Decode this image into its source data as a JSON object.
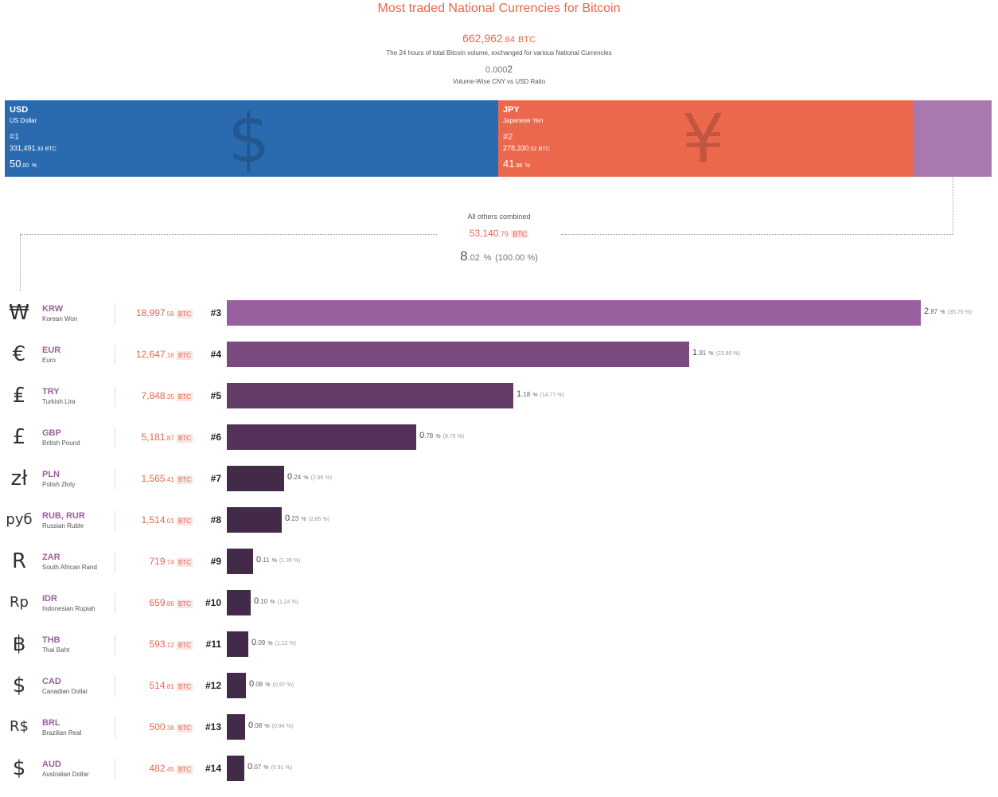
{
  "header": {
    "title": "Most traded National Currencies for Bitcoin",
    "total_int": "662,962",
    "total_dec": ".64",
    "total_unit": "BTC",
    "total_desc": "The 24 hours of total Bitcoin volume, exchanged for various National Currencies",
    "ratio_pre": "0.000",
    "ratio_last": "2",
    "ratio_label": "Volume-Wise CNY vs USD Ratio"
  },
  "top_blocks": [
    {
      "code": "USD",
      "name": "US Dollar",
      "rank": "#1",
      "vol_int": "331,491",
      "vol_dec": ".33",
      "unit": "BTC",
      "pct_int": "50",
      "pct_dec": ".00",
      "pct_unit": "%",
      "glyph": "$",
      "share": 50.0,
      "color": "#2a6bb0"
    },
    {
      "code": "JPY",
      "name": "Japanese Yen",
      "rank": "#2",
      "vol_int": "278,330",
      "vol_dec": ".52",
      "unit": "BTC",
      "pct_int": "41",
      "pct_dec": ".98",
      "pct_unit": "%",
      "glyph": "¥",
      "share": 41.98,
      "color": "#ec684d"
    }
  ],
  "others_block": {
    "share": 8.02,
    "color": "#a978af"
  },
  "others": {
    "label": "All others combined",
    "vol_int": "53,140",
    "vol_dec": ".79",
    "unit": "BTC",
    "pct_int": "8",
    "pct_dec": ".02",
    "pct_unit": "%",
    "total_pct": "(100.00 %)"
  },
  "chart_data": {
    "type": "bar",
    "categories": [
      "KRW",
      "EUR",
      "TRY",
      "GBP",
      "PLN",
      "RUB, RUR",
      "ZAR",
      "IDR",
      "THB",
      "CAD",
      "BRL",
      "AUD"
    ],
    "values": [
      18997.59,
      12647.16,
      7848.35,
      5181.87,
      1565.41,
      1514.01,
      719.74,
      659.86,
      593.12,
      514.81,
      500.38,
      482.45
    ],
    "unit": "BTC",
    "rows": [
      {
        "symbol": "₩",
        "code": "KRW",
        "name": "Korean Won",
        "vol_int": "18,997",
        "vol_dec": ".59",
        "unit": "BTC",
        "rank": "#3",
        "value": 18997.59,
        "pct_int": "2",
        "pct_dec": ".87",
        "pct_unit": "%",
        "rel": "(35.75 %)",
        "color": "#9a5f9f"
      },
      {
        "symbol": "€",
        "code": "EUR",
        "name": "Euro",
        "vol_int": "12,647",
        "vol_dec": ".16",
        "unit": "BTC",
        "rank": "#4",
        "value": 12647.16,
        "pct_int": "1",
        "pct_dec": ".91",
        "pct_unit": "%",
        "rel": "(23.80 %)",
        "color": "#7b4a7f"
      },
      {
        "symbol": "₤",
        "code": "TRY",
        "name": "Turkish Lira",
        "vol_int": "7,848",
        "vol_dec": ".35",
        "unit": "BTC",
        "rank": "#5",
        "value": 7848.35,
        "pct_int": "1",
        "pct_dec": ".18",
        "pct_unit": "%",
        "rel": "(14.77 %)",
        "color": "#623c66"
      },
      {
        "symbol": "£",
        "code": "GBP",
        "name": "British Pound",
        "vol_int": "5,181",
        "vol_dec": ".87",
        "unit": "BTC",
        "rank": "#6",
        "value": 5181.87,
        "pct_int": "0",
        "pct_dec": ".78",
        "pct_unit": "%",
        "rel": "(9.75 %)",
        "color": "#54325a"
      },
      {
        "symbol": "zł",
        "code": "PLN",
        "name": "Polish Złoty",
        "vol_int": "1,565",
        "vol_dec": ".41",
        "unit": "BTC",
        "rank": "#7",
        "value": 1565.41,
        "pct_int": "0",
        "pct_dec": ".24",
        "pct_unit": "%",
        "rel": "(2.95 %)",
        "color": "#432a48"
      },
      {
        "symbol": "руб",
        "code": "RUB, RUR",
        "name": "Russian Ruble",
        "vol_int": "1,514",
        "vol_dec": ".01",
        "unit": "BTC",
        "rank": "#8",
        "value": 1514.01,
        "pct_int": "0",
        "pct_dec": ".23",
        "pct_unit": "%",
        "rel": "(2.85 %)",
        "color": "#432a48"
      },
      {
        "symbol": "R",
        "code": "ZAR",
        "name": "South African Rand",
        "vol_int": "719",
        "vol_dec": ".74",
        "unit": "BTC",
        "rank": "#9",
        "value": 719.74,
        "pct_int": "0",
        "pct_dec": ".11",
        "pct_unit": "%",
        "rel": "(1.35 %)",
        "color": "#432a48"
      },
      {
        "symbol": "Rp",
        "code": "IDR",
        "name": "Indonesian Rupiah",
        "vol_int": "659",
        "vol_dec": ".86",
        "unit": "BTC",
        "rank": "#10",
        "value": 659.86,
        "pct_int": "0",
        "pct_dec": ".10",
        "pct_unit": "%",
        "rel": "(1.24 %)",
        "color": "#432a48"
      },
      {
        "symbol": "฿",
        "code": "THB",
        "name": "Thai Baht",
        "vol_int": "593",
        "vol_dec": ".12",
        "unit": "BTC",
        "rank": "#11",
        "value": 593.12,
        "pct_int": "0",
        "pct_dec": ".09",
        "pct_unit": "%",
        "rel": "(1.12 %)",
        "color": "#432a48"
      },
      {
        "symbol": "$",
        "code": "CAD",
        "name": "Canadian Dollar",
        "vol_int": "514",
        "vol_dec": ".81",
        "unit": "BTC",
        "rank": "#12",
        "value": 514.81,
        "pct_int": "0",
        "pct_dec": ".08",
        "pct_unit": "%",
        "rel": "(0.97 %)",
        "color": "#432a48"
      },
      {
        "symbol": "R$",
        "code": "BRL",
        "name": "Brazilian Real",
        "vol_int": "500",
        "vol_dec": ".38",
        "unit": "BTC",
        "rank": "#13",
        "value": 500.38,
        "pct_int": "0",
        "pct_dec": ".08",
        "pct_unit": "%",
        "rel": "(0.94 %)",
        "color": "#432a48"
      },
      {
        "symbol": "$",
        "code": "AUD",
        "name": "Australian Dollar",
        "vol_int": "482",
        "vol_dec": ".45",
        "unit": "BTC",
        "rank": "#14",
        "value": 482.45,
        "pct_int": "0",
        "pct_dec": ".07",
        "pct_unit": "%",
        "rel": "(0.91 %)",
        "color": "#432a48"
      }
    ]
  }
}
